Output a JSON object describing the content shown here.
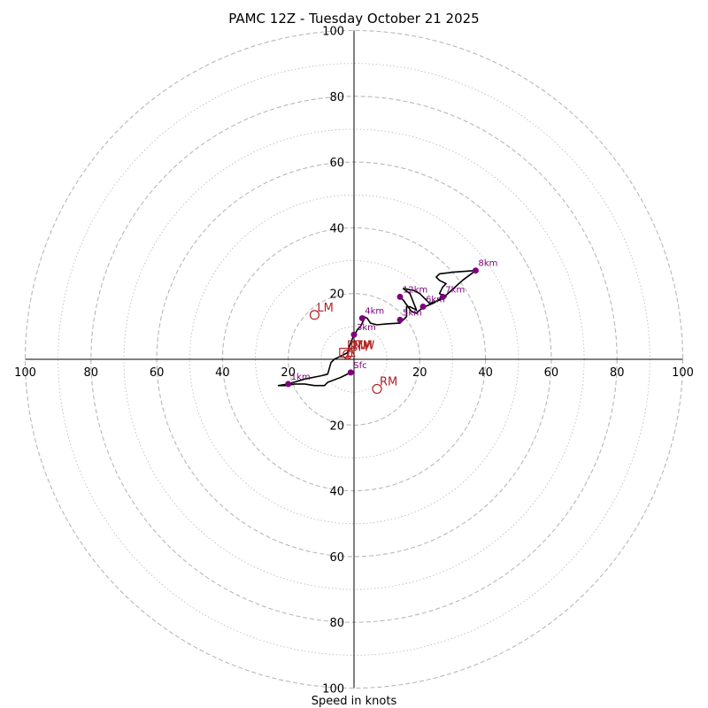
{
  "chart_data": {
    "type": "hodograph",
    "title": "PAMC 12Z - Tuesday October 21 2025",
    "xlabel": "Speed in knots",
    "range": [
      -100,
      100
    ],
    "ring_major_step": 20,
    "ring_minor_step": 10,
    "tick_values": [
      100,
      80,
      60,
      40,
      20
    ],
    "colors": {
      "trace": "#000000",
      "levels": "#800080",
      "motion": "#b22222",
      "grid": "#b8b8b8"
    },
    "trace": [
      [
        -1,
        -4
      ],
      [
        -4,
        -5.5
      ],
      [
        -8,
        -7
      ],
      [
        -9,
        -8
      ],
      [
        -12,
        -8
      ],
      [
        -15,
        -7.5
      ],
      [
        -18,
        -7.5
      ],
      [
        -21,
        -8
      ],
      [
        -23,
        -8
      ],
      [
        -20,
        -7.5
      ],
      [
        -15,
        -6
      ],
      [
        -10,
        -5
      ],
      [
        -8,
        -4.5
      ],
      [
        -7,
        -1
      ],
      [
        -6,
        0
      ],
      [
        -4,
        1
      ],
      [
        -2,
        2
      ],
      [
        -1,
        5
      ],
      [
        0,
        7.5
      ],
      [
        0.5,
        8
      ],
      [
        1,
        9
      ],
      [
        2,
        10
      ],
      [
        3,
        12
      ],
      [
        3,
        13
      ],
      [
        4,
        12.5
      ],
      [
        5,
        11
      ],
      [
        7,
        10.5
      ],
      [
        10,
        10.8
      ],
      [
        14,
        11
      ],
      [
        16,
        13
      ],
      [
        16,
        16
      ],
      [
        17,
        16
      ],
      [
        19,
        15
      ],
      [
        17,
        20
      ],
      [
        15,
        21.5
      ],
      [
        18,
        21
      ],
      [
        20,
        20
      ],
      [
        23,
        17
      ],
      [
        26,
        18
      ],
      [
        28,
        19
      ],
      [
        26,
        20
      ],
      [
        27,
        22
      ],
      [
        28,
        23
      ],
      [
        26,
        24
      ],
      [
        25,
        25
      ],
      [
        26,
        26
      ],
      [
        30,
        26.5
      ],
      [
        37,
        27
      ],
      [
        33,
        24
      ],
      [
        28,
        19.5
      ],
      [
        24,
        17
      ],
      [
        21.5,
        16
      ],
      [
        20,
        15
      ],
      [
        19,
        14
      ],
      [
        17.5,
        14.5
      ],
      [
        15,
        18
      ],
      [
        14,
        19
      ]
    ],
    "levels": [
      {
        "label": "Sfc",
        "u": -1,
        "v": -4
      },
      {
        "label": "1km",
        "u": -20,
        "v": -7.5
      },
      {
        "label": "3km",
        "u": 0,
        "v": 7.5
      },
      {
        "label": "4km",
        "u": 2.5,
        "v": 12.5
      },
      {
        "label": "5km",
        "u": 14,
        "v": 12
      },
      {
        "label": "6km",
        "u": 21,
        "v": 16
      },
      {
        "label": "7km",
        "u": 27,
        "v": 19
      },
      {
        "label": "8km",
        "u": 37,
        "v": 27
      },
      {
        "label": "12km",
        "u": 14,
        "v": 19
      }
    ],
    "storm_motion": [
      {
        "label": "LM",
        "u": -12,
        "v": 13.5,
        "marker": "circle"
      },
      {
        "label": "RM",
        "u": 7,
        "v": -9,
        "marker": "circle"
      },
      {
        "label": "MW",
        "u": -1,
        "v": 2,
        "marker": "triangle"
      },
      {
        "label": "BM",
        "u": -2,
        "v": 1.5,
        "marker": "circle"
      },
      {
        "label": "DTM",
        "u": -3,
        "v": 2,
        "marker": "square"
      }
    ]
  }
}
